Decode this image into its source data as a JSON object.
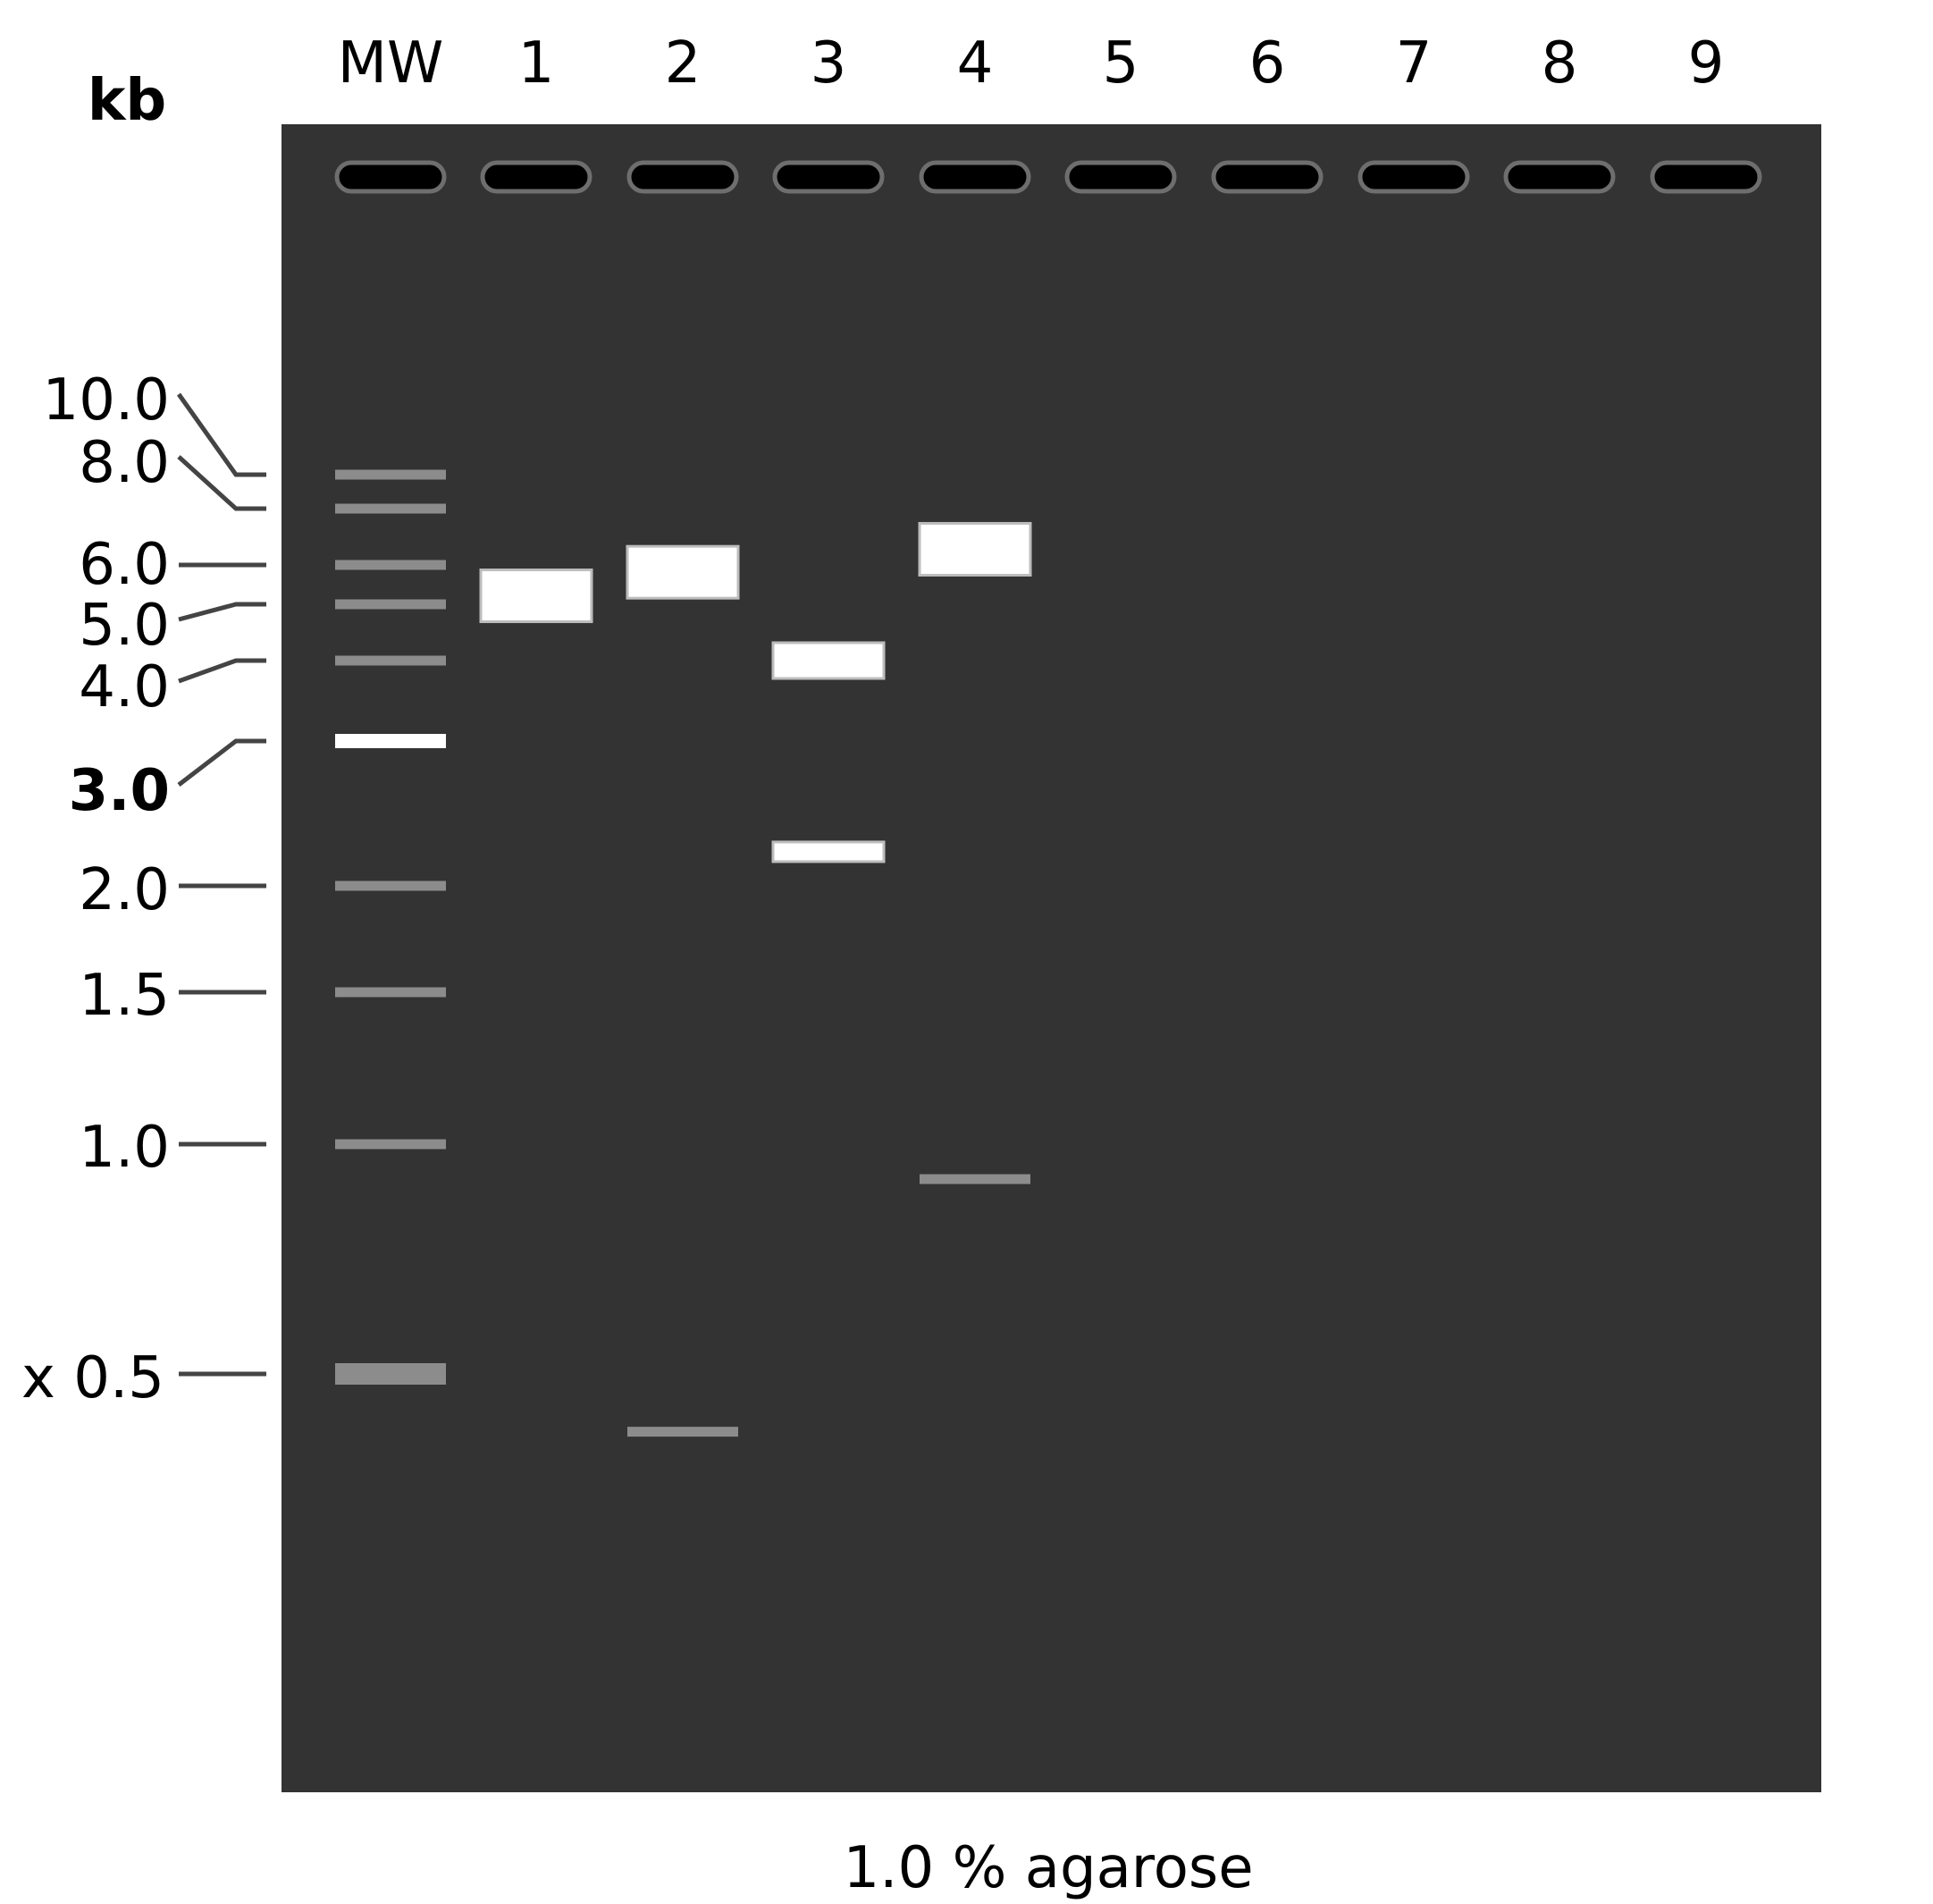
{
  "gel": {
    "unit_label": "kb",
    "caption": "1.0 % agarose",
    "colors": {
      "gel": "#333333",
      "well_fill": "#000000",
      "well_outline": "#6e6e6e",
      "band_bright": "#ffffff",
      "band_dim": "#8c8c8c",
      "leader_line": "#444444"
    },
    "lanes": [
      {
        "label": "MW"
      },
      {
        "label": "1"
      },
      {
        "label": "2"
      },
      {
        "label": "3"
      },
      {
        "label": "4"
      },
      {
        "label": "5"
      },
      {
        "label": "6"
      },
      {
        "label": "7"
      },
      {
        "label": "8"
      },
      {
        "label": "9"
      }
    ],
    "markers": [
      {
        "label": "10.0",
        "size_kb": 10.0,
        "bold": false
      },
      {
        "label": "8.0",
        "size_kb": 8.0,
        "bold": false
      },
      {
        "label": "6.0",
        "size_kb": 6.0,
        "bold": false
      },
      {
        "label": "5.0",
        "size_kb": 5.0,
        "bold": false
      },
      {
        "label": "4.0",
        "size_kb": 4.0,
        "bold": false
      },
      {
        "label": "3.0",
        "size_kb": 3.0,
        "bold": true
      },
      {
        "label": "2.0",
        "size_kb": 2.0,
        "bold": false
      },
      {
        "label": "1.5",
        "size_kb": 1.5,
        "bold": false
      },
      {
        "label": "1.0",
        "size_kb": 1.0,
        "bold": false
      },
      {
        "label": "x 0.5",
        "size_kb": 0.5,
        "bold": false
      }
    ],
    "sample_bands": [
      {
        "lane": "1",
        "size_kb": 5.2,
        "intensity": "strong"
      },
      {
        "lane": "2",
        "size_kb": 5.8,
        "intensity": "strong"
      },
      {
        "lane": "2",
        "size_kb": 0.42,
        "intensity": "faint"
      },
      {
        "lane": "3",
        "size_kb": 4.0,
        "intensity": "strong"
      },
      {
        "lane": "3",
        "size_kb": 2.2,
        "intensity": "medium"
      },
      {
        "lane": "4",
        "size_kb": 6.5,
        "intensity": "strong"
      },
      {
        "lane": "4",
        "size_kb": 0.9,
        "intensity": "faint"
      }
    ]
  }
}
